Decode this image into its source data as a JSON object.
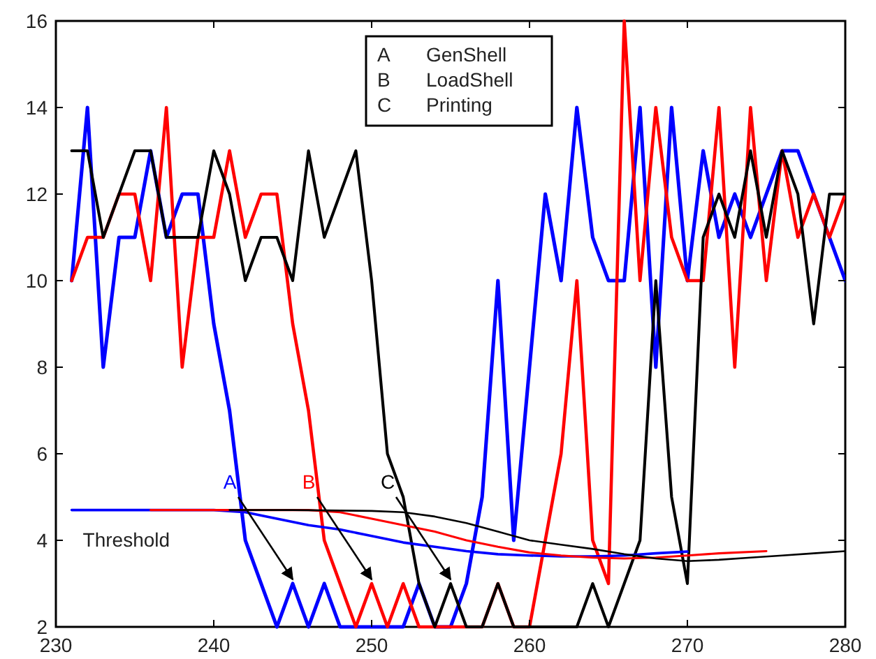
{
  "chart_data": {
    "type": "line",
    "xlim": [
      230,
      280
    ],
    "xticks": [
      230,
      240,
      250,
      260,
      270,
      280
    ],
    "ylim": [
      2,
      16
    ],
    "yticks": [
      2,
      4,
      6,
      8,
      10,
      12,
      14,
      16
    ],
    "grid": false,
    "x": [
      231,
      232,
      233,
      234,
      235,
      236,
      237,
      238,
      239,
      240,
      241,
      242,
      243,
      244,
      245,
      246,
      247,
      248,
      249,
      250,
      251,
      252,
      253,
      254,
      255,
      256,
      257,
      258,
      259,
      260,
      261,
      262,
      263,
      264,
      265,
      266,
      267,
      268,
      269,
      270,
      271,
      272,
      273,
      274,
      275,
      276,
      277,
      278,
      279,
      280
    ],
    "series": [
      {
        "color": "#0000ff",
        "values": [
          10,
          14,
          8,
          11,
          11,
          13,
          11,
          12,
          12,
          9,
          7,
          4,
          3,
          2,
          3,
          2,
          3,
          2,
          2,
          2,
          2,
          2,
          3,
          2,
          2,
          3,
          5,
          10,
          4,
          8,
          12,
          10,
          14,
          11,
          10,
          10,
          14,
          8,
          14,
          10,
          13,
          11,
          12,
          11,
          12,
          13,
          13,
          12,
          11,
          10
        ]
      },
      {
        "color": "#ff0000",
        "values": [
          10,
          11,
          11,
          12,
          12,
          10,
          14,
          8,
          11,
          11,
          13,
          11,
          12,
          12,
          9,
          7,
          4,
          3,
          2,
          3,
          2,
          3,
          2,
          2,
          2,
          2,
          2,
          3,
          2,
          2,
          4,
          6,
          10,
          4,
          3,
          16,
          10,
          14,
          11,
          10,
          10,
          14,
          8,
          14,
          10,
          13,
          11,
          12,
          11,
          12
        ]
      },
      {
        "color": "#000000",
        "values": [
          13,
          13,
          11,
          12,
          13,
          13,
          11,
          11,
          11,
          13,
          12,
          10,
          11,
          11,
          10,
          13,
          11,
          12,
          13,
          10,
          6,
          5,
          3,
          2,
          3,
          2,
          2,
          3,
          2,
          2,
          2,
          2,
          2,
          3,
          2,
          3,
          4,
          10,
          5,
          3,
          11,
          12,
          11,
          13,
          11,
          13,
          12,
          9,
          12,
          12
        ]
      },
      {
        "name": "Threshold",
        "color": "#0000ff",
        "x": [
          231,
          235,
          240,
          242,
          244,
          246,
          248,
          250,
          252,
          254,
          256,
          258,
          260,
          262,
          264,
          266,
          268,
          270
        ],
        "values": [
          4.7,
          4.7,
          4.7,
          4.65,
          4.5,
          4.35,
          4.25,
          4.1,
          3.95,
          3.85,
          3.75,
          3.68,
          3.65,
          3.63,
          3.63,
          3.65,
          3.7,
          3.74
        ]
      },
      {
        "color": "#ff0000",
        "x": [
          236,
          240,
          244,
          246,
          248,
          250,
          252,
          254,
          256,
          258,
          260,
          262,
          264,
          266,
          268,
          270,
          272,
          275
        ],
        "values": [
          4.7,
          4.7,
          4.7,
          4.7,
          4.65,
          4.5,
          4.35,
          4.2,
          4.0,
          3.85,
          3.72,
          3.65,
          3.6,
          3.58,
          3.6,
          3.65,
          3.7,
          3.75
        ]
      },
      {
        "color": "#000000",
        "x": [
          241,
          245,
          250,
          252,
          254,
          256,
          258,
          260,
          262,
          264,
          266,
          268,
          270,
          272,
          274,
          276,
          278,
          280
        ],
        "values": [
          4.7,
          4.7,
          4.68,
          4.65,
          4.55,
          4.4,
          4.2,
          4.0,
          3.9,
          3.8,
          3.68,
          3.58,
          3.52,
          3.55,
          3.6,
          3.65,
          3.7,
          3.75
        ]
      }
    ],
    "annotations": [
      "A GenShell",
      "B LoadShell",
      "C Printing",
      {
        "text": "A",
        "x": 245,
        "y": 3
      },
      {
        "text": "B",
        "x": 250,
        "y": 3
      },
      {
        "text": "C",
        "x": 255,
        "y": 3
      }
    ]
  }
}
